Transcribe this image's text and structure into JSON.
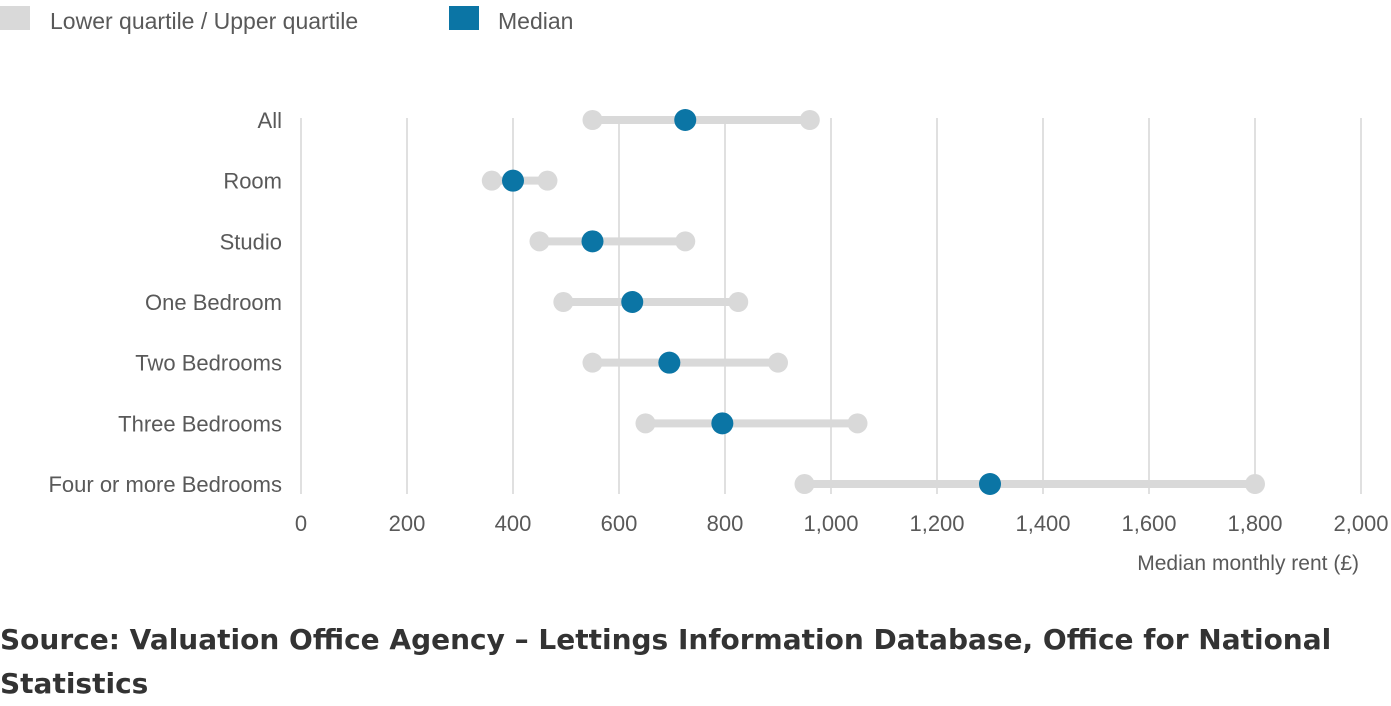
{
  "colors": {
    "quartile": "#d9d9d9",
    "median": "#0b75a5",
    "grid": "#e0e0e0",
    "text": "#595959"
  },
  "legend": {
    "quartile_label": "Lower quartile / Upper quartile",
    "median_label": "Median"
  },
  "source": "Source: Valuation Office Agency – Lettings Information Database, Office for National Statistics",
  "chart_data": {
    "type": "dot-range",
    "title": "",
    "xlabel": "Median monthly rent (£)",
    "ylabel": "",
    "xlim": [
      0,
      2000
    ],
    "xticks": [
      0,
      200,
      400,
      600,
      800,
      1000,
      1200,
      1400,
      1600,
      1800,
      2000
    ],
    "xtick_labels": [
      "0",
      "200",
      "400",
      "600",
      "800",
      "1,000",
      "1,200",
      "1,400",
      "1,600",
      "1,800",
      "2,000"
    ],
    "grid": true,
    "legend_position": "top-left",
    "categories": [
      "All",
      "Room",
      "Studio",
      "One Bedroom",
      "Two Bedrooms",
      "Three Bedrooms",
      "Four or more Bedrooms"
    ],
    "series": [
      {
        "name": "Lower quartile",
        "values": [
          550,
          360,
          450,
          495,
          550,
          650,
          950
        ]
      },
      {
        "name": "Median",
        "values": [
          725,
          400,
          550,
          625,
          695,
          795,
          1300
        ]
      },
      {
        "name": "Upper quartile",
        "values": [
          960,
          465,
          725,
          825,
          900,
          1050,
          1800
        ]
      }
    ]
  }
}
